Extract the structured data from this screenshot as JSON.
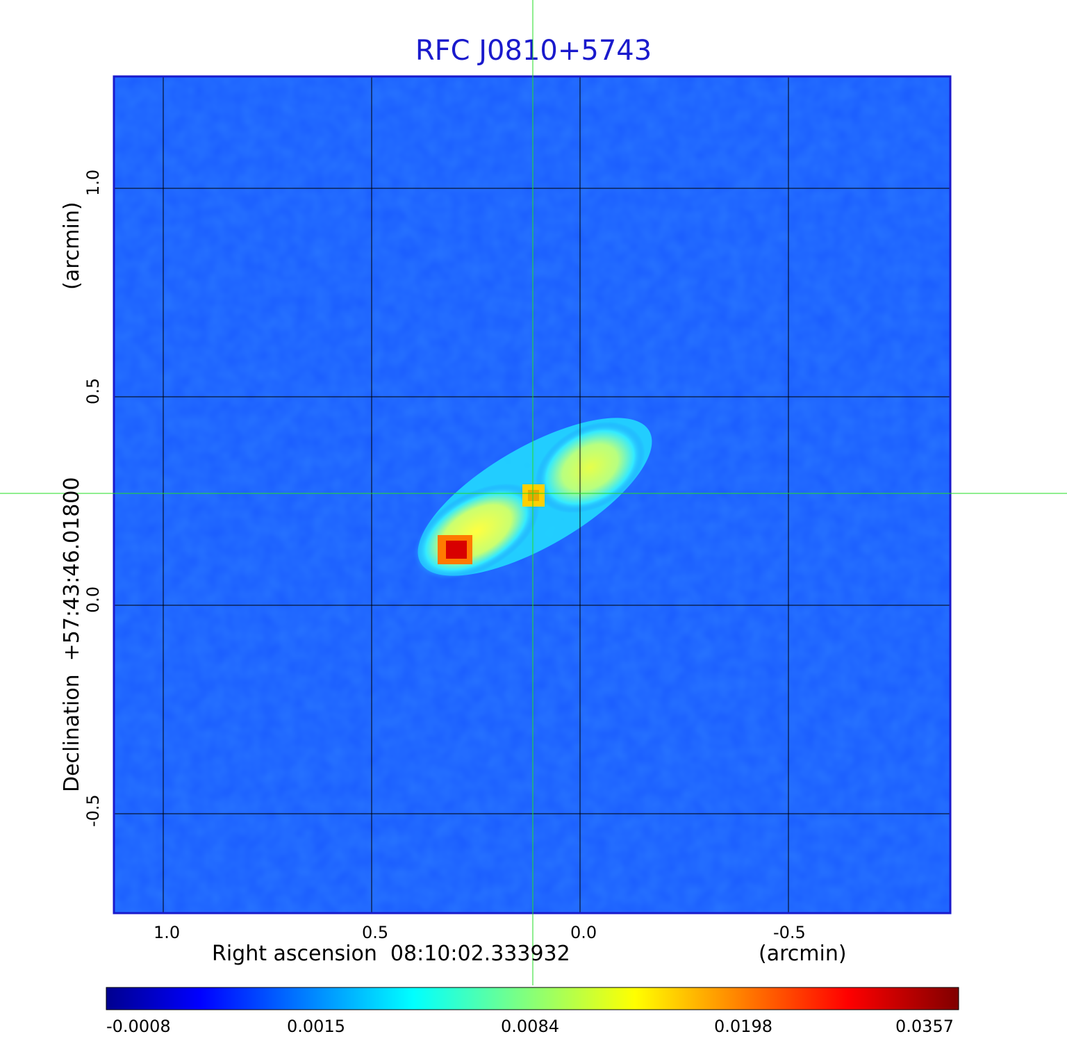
{
  "figure": {
    "title": "RFC J0810+5743",
    "x_axis_label": "Right ascension  08:10:02.333932",
    "x_axis_unit": "(arcmin)",
    "y_axis_label": "Declination  +57:43:46.01800",
    "y_axis_unit": "(arcmin)",
    "x_ticks": [
      "1.0",
      "0.5",
      "0.0",
      "-0.5"
    ],
    "y_ticks": [
      "1.0",
      "0.5",
      "0.0",
      "-0.5"
    ],
    "colorbar_ticks": [
      "-0.0008",
      "0.0015",
      "0.0084",
      "0.0198",
      "0.0357"
    ],
    "colormap": "jet",
    "crosshair_color": "#22dd22",
    "grid_color": "#000000",
    "frame_color": "#1a1acc"
  }
}
